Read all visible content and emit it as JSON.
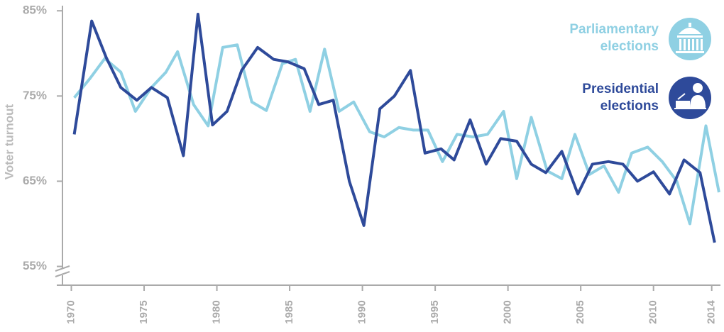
{
  "chart_data": {
    "type": "line",
    "y_label": "Voter turnout",
    "xlim": [
      1969,
      2014.6
    ],
    "xticks": [
      1970,
      1975,
      1980,
      1985,
      1990,
      1995,
      2000,
      2005,
      2010,
      2014
    ],
    "ylim": [
      52.8,
      85.6
    ],
    "yticks": [
      {
        "value": 55,
        "label": "55%"
      },
      {
        "value": 65,
        "label": "65%"
      },
      {
        "value": 75,
        "label": "75%"
      },
      {
        "value": 85,
        "label": "85%"
      }
    ],
    "series": [
      {
        "name": "Parliamentary elections",
        "color": "#8fd0e3",
        "x": [
          1970.2,
          1971.3,
          1972.3,
          1973.4,
          1974.4,
          1975.5,
          1976.5,
          1977.3,
          1978.4,
          1979.4,
          1980.4,
          1981.4,
          1982.4,
          1983.4,
          1984.5,
          1985.4,
          1986.4,
          1987.4,
          1988.4,
          1989.4,
          1990.5,
          1991.5,
          1992.5,
          1993.5,
          1994.5,
          1995.5,
          1996.5,
          1997.6,
          1998.6,
          1999.7,
          2000.6,
          2001.6,
          2002.7,
          2003.7,
          2004.6,
          2005.6,
          2006.6,
          2007.6,
          2008.5,
          2009.6,
          2010.6,
          2011.6,
          2012.5,
          2013.6,
          2014.5
        ],
        "values": [
          74.8,
          77.1,
          79.4,
          77.8,
          73.2,
          76,
          77.8,
          80.2,
          74,
          71.5,
          80.7,
          81,
          74.3,
          73.3,
          78.8,
          79.3,
          73.2,
          80.5,
          73.2,
          74.3,
          70.8,
          70.2,
          71.3,
          71,
          71,
          67.3,
          70.5,
          70.2,
          70.5,
          73.2,
          65.3,
          72.5,
          66.2,
          65.3,
          70.5,
          65.8,
          66.8,
          63.7,
          68.3,
          69,
          67.3,
          65,
          60,
          71.5,
          63.7
        ]
      },
      {
        "name": "Presidential elections",
        "color": "#2e4a9a",
        "x": [
          1970.2,
          1971.4,
          1972.4,
          1973.4,
          1974.5,
          1975.5,
          1976.6,
          1977.7,
          1978.7,
          1979.7,
          1980.7,
          1981.7,
          1982.8,
          1983.9,
          1984.9,
          1986.0,
          1987.0,
          1988.0,
          1989.1,
          1990.1,
          1991.2,
          1992.2,
          1993.3,
          1994.3,
          1995.4,
          1996.3,
          1997.4,
          1998.5,
          1999.5,
          2000.6,
          2001.6,
          2002.6,
          2003.7,
          2004.8,
          2005.8,
          2006.9,
          2007.9,
          2008.9,
          2010.0,
          2011.1,
          2012.1,
          2013.2,
          2014.2
        ],
        "values": [
          70.5,
          83.8,
          79.5,
          76,
          74.5,
          76,
          74.8,
          68,
          84.6,
          71.6,
          73.2,
          78,
          80.7,
          79.3,
          79,
          78.2,
          74,
          74.5,
          65,
          59.8,
          73.5,
          75,
          78,
          68.3,
          68.8,
          67.5,
          72.2,
          67,
          70,
          69.7,
          67,
          66,
          68.5,
          63.5,
          67,
          67.3,
          67,
          65,
          66.1,
          63.5,
          67.5,
          66,
          57.8
        ]
      }
    ]
  }
}
